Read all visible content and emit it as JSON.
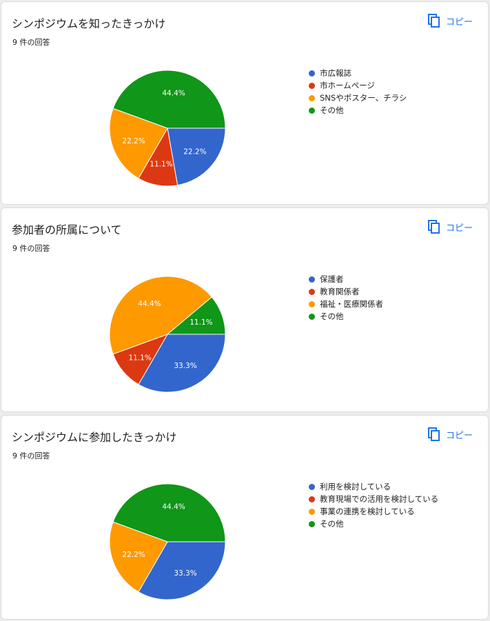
{
  "copy_label": "コピー",
  "colors": [
    "#3366cc",
    "#dc3912",
    "#ff9900",
    "#109618"
  ],
  "cards": [
    {
      "title": "シンポジウムを知ったきっかけ",
      "count": "9 件の回答",
      "chart_data": {
        "type": "pie",
        "labels": [
          "市広報誌",
          "市ホームページ",
          "SNSやポスター、チラシ",
          "その他"
        ],
        "values": [
          22.2,
          11.1,
          22.2,
          44.4
        ],
        "value_labels": [
          "22.2%",
          "11.1%",
          "22.2%",
          "44.4%"
        ],
        "colors": [
          "#3366cc",
          "#dc3912",
          "#ff9900",
          "#109618"
        ],
        "legend_position": "right"
      }
    },
    {
      "title": "参加者の所属について",
      "count": "9 件の回答",
      "chart_data": {
        "type": "pie",
        "labels": [
          "保護者",
          "教育関係者",
          "福祉・医療関係者",
          "その他"
        ],
        "values": [
          33.3,
          11.1,
          44.4,
          11.1
        ],
        "value_labels": [
          "33.3%",
          "11.1%",
          "44.4%",
          "11.1%"
        ],
        "colors": [
          "#3366cc",
          "#dc3912",
          "#ff9900",
          "#109618"
        ],
        "legend_position": "right"
      }
    },
    {
      "title": "シンポジウムに参加したきっかけ",
      "count": "9 件の回答",
      "chart_data": {
        "type": "pie",
        "labels": [
          "利用を検討している",
          "教育現場での活用を検討している",
          "事業の連携を検討している",
          "その他"
        ],
        "values": [
          33.3,
          0,
          22.2,
          44.4
        ],
        "value_labels": [
          "33.3%",
          "",
          "22.2%",
          "44.4%"
        ],
        "colors": [
          "#3366cc",
          "#dc3912",
          "#ff9900",
          "#109618"
        ],
        "legend_position": "right"
      }
    }
  ]
}
